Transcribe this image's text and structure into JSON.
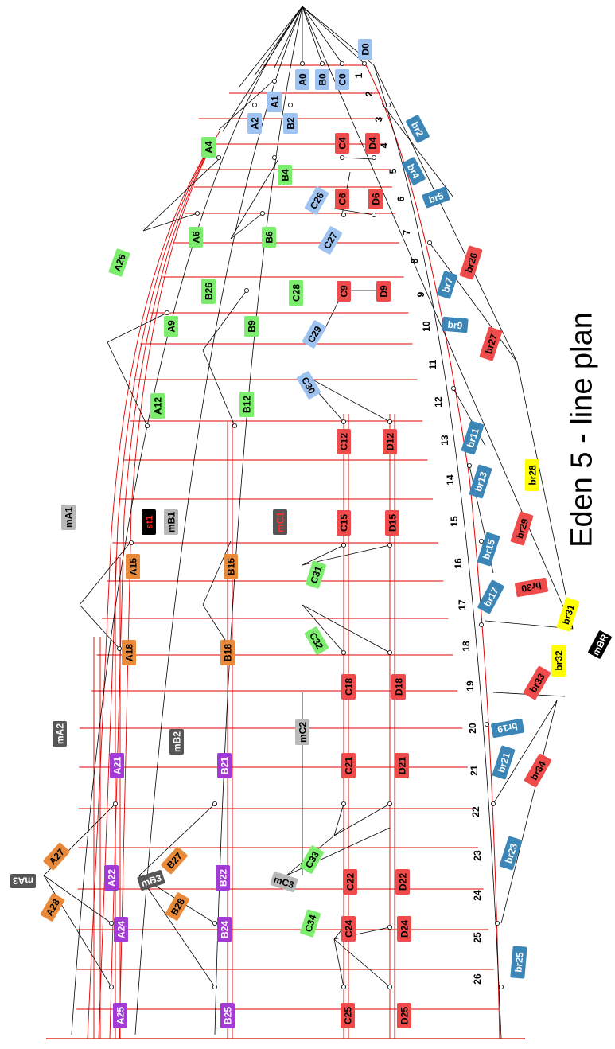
{
  "title": "Eden 5 - line plan",
  "colors": {
    "light_blue": "#9fc3f0",
    "green": "#7ded6e",
    "red": "#f04b4b",
    "orange": "#e88a3a",
    "purple": "#a43ad6",
    "steel_blue": "#3b86b6",
    "yellow": "#ffff00",
    "gray": "#b8b8b8",
    "dark_gray": "#555555",
    "black": "#000000",
    "line_red": "#e00000"
  },
  "frame_numbers": [
    "1",
    "2",
    "3",
    "4",
    "5",
    "6",
    "7",
    "8",
    "9",
    "10",
    "11",
    "12",
    "13",
    "14",
    "15",
    "16",
    "17",
    "18",
    "19",
    "20",
    "21",
    "22",
    "23",
    "24",
    "25",
    "26"
  ],
  "labels": [
    {
      "text": "D0",
      "color": "light_blue"
    },
    {
      "text": "A0",
      "color": "light_blue"
    },
    {
      "text": "B0",
      "color": "light_blue"
    },
    {
      "text": "C0",
      "color": "light_blue"
    },
    {
      "text": "A1",
      "color": "light_blue"
    },
    {
      "text": "A2",
      "color": "light_blue"
    },
    {
      "text": "B2",
      "color": "light_blue"
    },
    {
      "text": "br2",
      "color": "steel_blue"
    },
    {
      "text": "A4",
      "color": "green"
    },
    {
      "text": "C4",
      "color": "red"
    },
    {
      "text": "D4",
      "color": "red"
    },
    {
      "text": "br4",
      "color": "steel_blue"
    },
    {
      "text": "B4",
      "color": "green"
    },
    {
      "text": "br5",
      "color": "steel_blue"
    },
    {
      "text": "C26",
      "color": "light_blue"
    },
    {
      "text": "C6",
      "color": "red"
    },
    {
      "text": "D6",
      "color": "red"
    },
    {
      "text": "A6",
      "color": "green"
    },
    {
      "text": "B6",
      "color": "green"
    },
    {
      "text": "C27",
      "color": "light_blue"
    },
    {
      "text": "br26",
      "color": "red"
    },
    {
      "text": "A26",
      "color": "green"
    },
    {
      "text": "B26",
      "color": "green"
    },
    {
      "text": "C28",
      "color": "green"
    },
    {
      "text": "C9",
      "color": "red"
    },
    {
      "text": "D9",
      "color": "red"
    },
    {
      "text": "br7",
      "color": "steel_blue"
    },
    {
      "text": "A9",
      "color": "green"
    },
    {
      "text": "B9",
      "color": "green"
    },
    {
      "text": "C29",
      "color": "light_blue"
    },
    {
      "text": "br9",
      "color": "steel_blue"
    },
    {
      "text": "br27",
      "color": "red"
    },
    {
      "text": "C30",
      "color": "light_blue"
    },
    {
      "text": "A12",
      "color": "green"
    },
    {
      "text": "B12",
      "color": "green"
    },
    {
      "text": "C12",
      "color": "red"
    },
    {
      "text": "D12",
      "color": "red"
    },
    {
      "text": "br11",
      "color": "steel_blue"
    },
    {
      "text": "br28",
      "color": "yellow"
    },
    {
      "text": "br13",
      "color": "steel_blue"
    },
    {
      "text": "mA1",
      "color": "gray"
    },
    {
      "text": "st1",
      "color": "black"
    },
    {
      "text": "mB1",
      "color": "gray"
    },
    {
      "text": "mC1",
      "color": "dark_gray"
    },
    {
      "text": "C15",
      "color": "red"
    },
    {
      "text": "D15",
      "color": "red"
    },
    {
      "text": "br29",
      "color": "red"
    },
    {
      "text": "A15",
      "color": "orange"
    },
    {
      "text": "B15",
      "color": "orange"
    },
    {
      "text": "br15",
      "color": "steel_blue"
    },
    {
      "text": "C31",
      "color": "green"
    },
    {
      "text": "br30",
      "color": "red"
    },
    {
      "text": "br17",
      "color": "steel_blue"
    },
    {
      "text": "br31",
      "color": "yellow"
    },
    {
      "text": "mBR",
      "color": "black"
    },
    {
      "text": "A18",
      "color": "orange"
    },
    {
      "text": "B18",
      "color": "orange"
    },
    {
      "text": "C32",
      "color": "green"
    },
    {
      "text": "C18",
      "color": "red"
    },
    {
      "text": "D18",
      "color": "red"
    },
    {
      "text": "br32",
      "color": "yellow"
    },
    {
      "text": "br33",
      "color": "red"
    },
    {
      "text": "mA2",
      "color": "dark_gray"
    },
    {
      "text": "mB2",
      "color": "dark_gray"
    },
    {
      "text": "mC2",
      "color": "gray"
    },
    {
      "text": "br19",
      "color": "steel_blue"
    },
    {
      "text": "A21",
      "color": "purple"
    },
    {
      "text": "B21",
      "color": "purple"
    },
    {
      "text": "C21",
      "color": "red"
    },
    {
      "text": "D21",
      "color": "red"
    },
    {
      "text": "br21",
      "color": "steel_blue"
    },
    {
      "text": "br34",
      "color": "red"
    },
    {
      "text": "A27",
      "color": "orange"
    },
    {
      "text": "B27",
      "color": "orange"
    },
    {
      "text": "mA3",
      "color": "dark_gray"
    },
    {
      "text": "A22",
      "color": "purple"
    },
    {
      "text": "mB3",
      "color": "dark_gray"
    },
    {
      "text": "B22",
      "color": "purple"
    },
    {
      "text": "C33",
      "color": "green"
    },
    {
      "text": "mC3",
      "color": "gray"
    },
    {
      "text": "C22",
      "color": "red"
    },
    {
      "text": "D22",
      "color": "red"
    },
    {
      "text": "br23",
      "color": "steel_blue"
    },
    {
      "text": "A28",
      "color": "orange"
    },
    {
      "text": "B28",
      "color": "orange"
    },
    {
      "text": "C34",
      "color": "green"
    },
    {
      "text": "A24",
      "color": "purple"
    },
    {
      "text": "B24",
      "color": "purple"
    },
    {
      "text": "C24",
      "color": "red"
    },
    {
      "text": "D24",
      "color": "red"
    },
    {
      "text": "br25",
      "color": "steel_blue"
    },
    {
      "text": "A25",
      "color": "purple"
    },
    {
      "text": "B25",
      "color": "purple"
    },
    {
      "text": "C25",
      "color": "red"
    },
    {
      "text": "D25",
      "color": "red"
    }
  ]
}
